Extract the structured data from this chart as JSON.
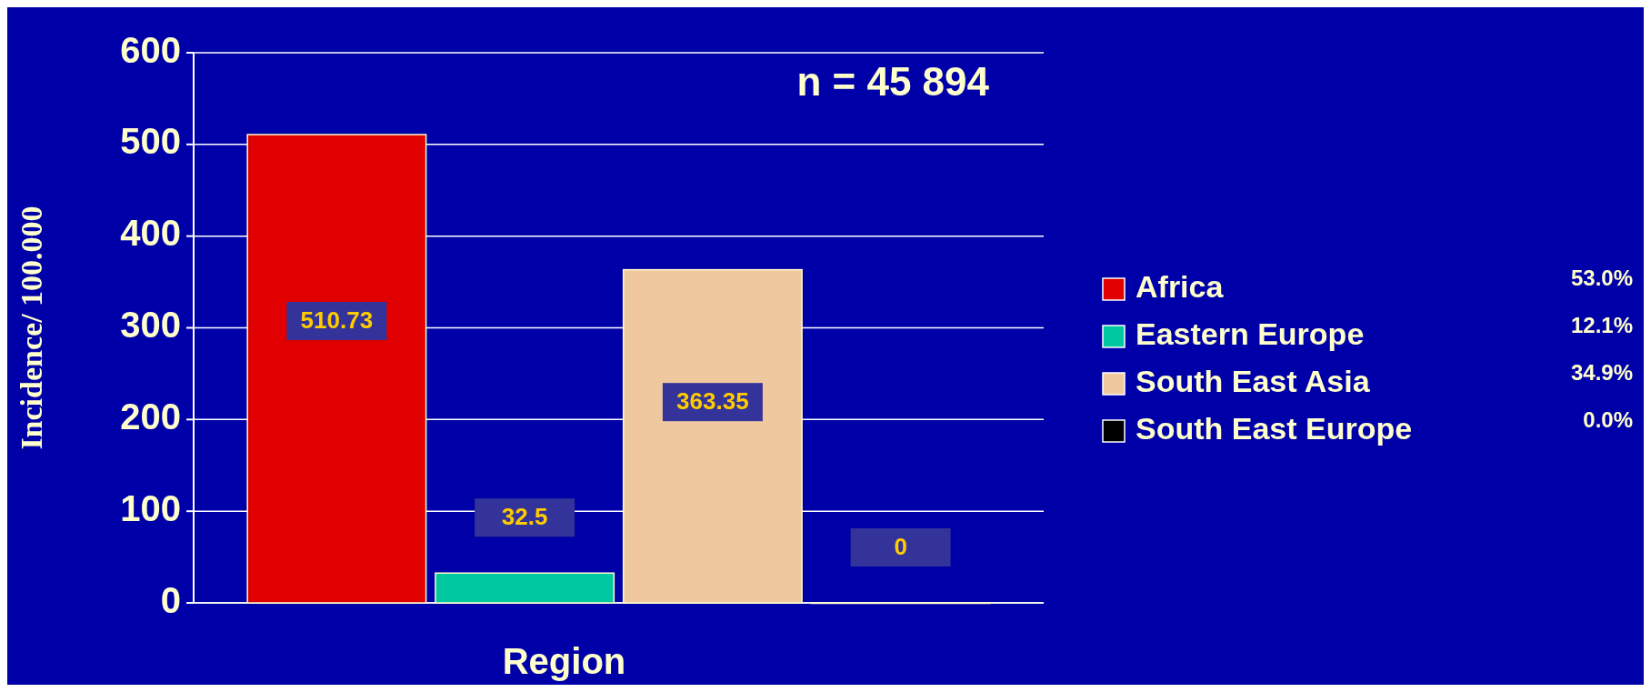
{
  "chart_data": {
    "type": "bar",
    "xlabel": "Region",
    "ylabel": "Incidence/ 100.000",
    "categories": [
      null
    ],
    "series": [
      {
        "name": "Africa",
        "color": "#e00000",
        "values": [
          510.73
        ]
      },
      {
        "name": "Eastern Europe",
        "color": "#00c8a0",
        "values": [
          32.5
        ]
      },
      {
        "name": "South East Asia",
        "color": "#f0c8a0",
        "values": [
          363.35
        ]
      },
      {
        "name": "South East Europe",
        "color": "#000000",
        "values": [
          0
        ]
      }
    ],
    "ylim": [
      0,
      600
    ],
    "yticks": [
      0,
      100,
      200,
      300,
      400,
      500,
      600
    ],
    "grid": "y",
    "legend": "right",
    "tick_labels": "y",
    "data_labels": true,
    "annotations": [
      "n = 45 894",
      "53.0%",
      "12.1%",
      "34.9%",
      "0.0%"
    ]
  }
}
